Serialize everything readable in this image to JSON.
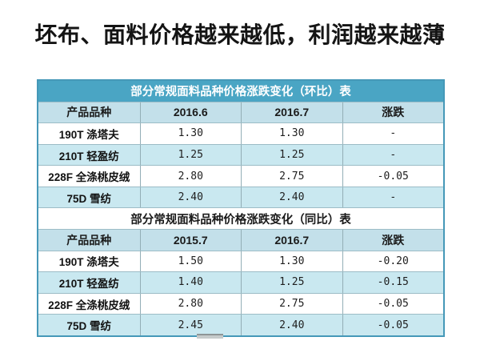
{
  "page": {
    "title": "坯布、面料价格越来越低，利润越来越薄"
  },
  "colors": {
    "accent_blue": "#4aa5c4",
    "header_blue": "#c3e0ea",
    "row_blue": "#c9e8f0",
    "border_blue": "#4598b8"
  },
  "tables": [
    {
      "caption": "部分常规面料品种价格涨跌变化（环比）表",
      "headers": [
        "产品品种",
        "2016.6",
        "2016.7",
        "涨跌"
      ],
      "rows": [
        {
          "cells": [
            "190T 涤塔夫",
            "1.30",
            "1.30",
            "-"
          ]
        },
        {
          "cells": [
            "210T 轻盈纺",
            "1.25",
            "1.25",
            "-"
          ]
        },
        {
          "cells": [
            "228F 全涤桃皮绒",
            "2.80",
            "2.75",
            "-0.05"
          ]
        },
        {
          "cells": [
            "75D 雪纺",
            "2.40",
            "2.40",
            "-"
          ]
        }
      ]
    },
    {
      "caption": "部分常规面料品种价格涨跌变化（同比）表",
      "headers": [
        "产品品种",
        "2015.7",
        "2016.7",
        "涨跌"
      ],
      "rows": [
        {
          "cells": [
            "190T 涤塔夫",
            "1.50",
            "1.30",
            "-0.20"
          ]
        },
        {
          "cells": [
            "210T 轻盈纺",
            "1.40",
            "1.25",
            "-0.15"
          ]
        },
        {
          "cells": [
            "228F 全涤桃皮绒",
            "2.80",
            "2.75",
            "-0.05"
          ]
        },
        {
          "cells": [
            "75D 雪纺",
            "2.45",
            "2.40",
            "-0.05"
          ]
        }
      ]
    }
  ]
}
